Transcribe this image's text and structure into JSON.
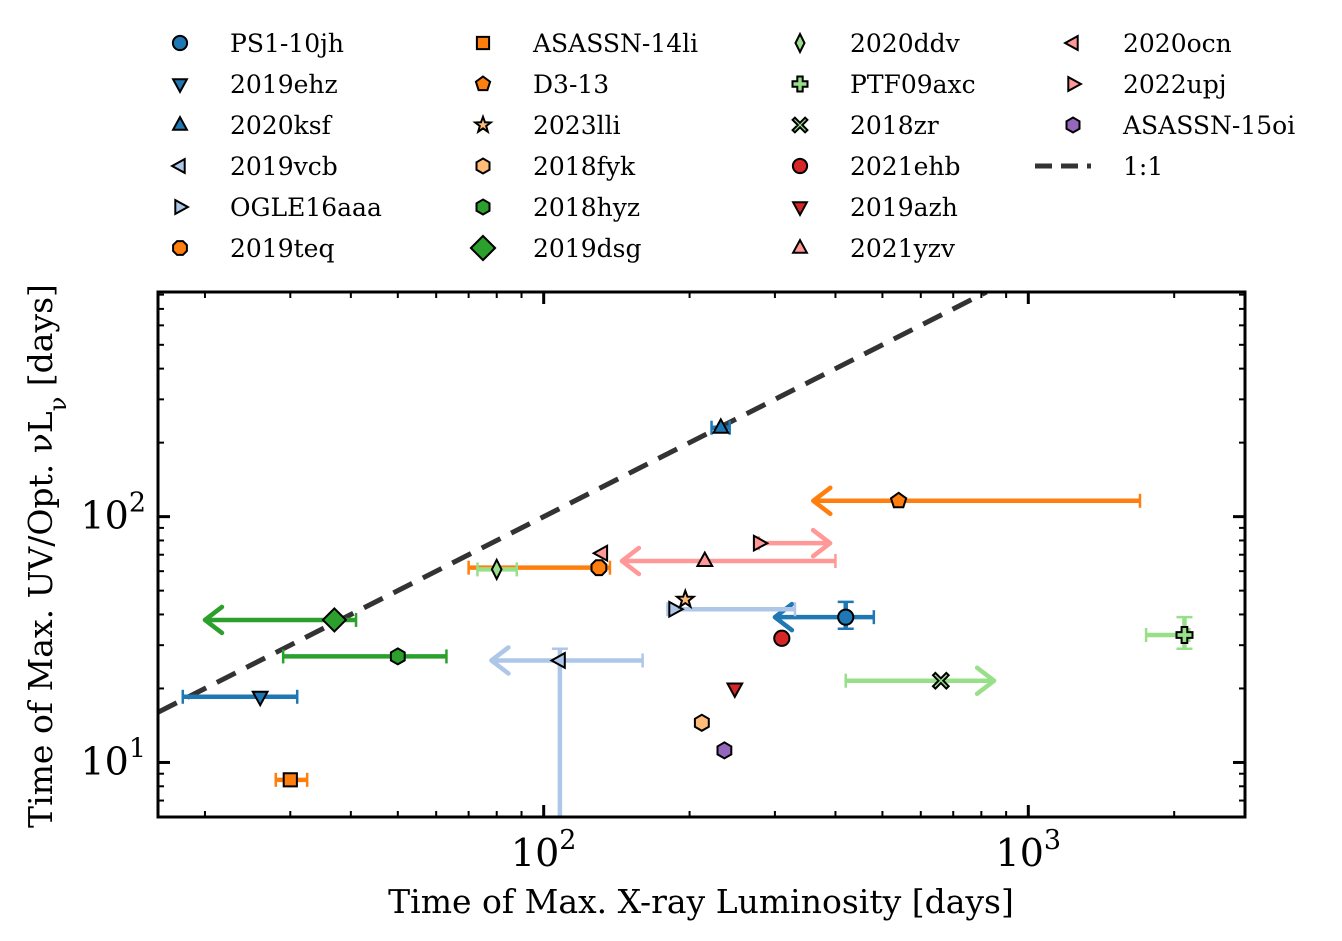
{
  "chart_data": {
    "type": "scatter",
    "xlabel": "Time of Max. X-ray Luminosity [days]",
    "ylabel": "Time of Max. UV/Opt. νL",
    "ylabel_sub": "ν",
    "ylabel_unit": " [days]",
    "xscale": "log",
    "yscale": "log",
    "xlim": [
      16,
      2800
    ],
    "ylim": [
      6,
      820
    ],
    "x_major_ticks": [
      {
        "base": "10",
        "exp": "2",
        "value": 100
      },
      {
        "base": "10",
        "exp": "3",
        "value": 1000
      }
    ],
    "y_major_ticks": [
      {
        "base": "10",
        "exp": "1",
        "value": 10
      },
      {
        "base": "10",
        "exp": "2",
        "value": 100
      }
    ],
    "grid": false,
    "legend_location": "above plot, 4 columns",
    "reference_line": {
      "label": "1:1",
      "color": "#333333",
      "style": "dashed"
    },
    "series": [
      {
        "name": "PS1-10jh",
        "marker": "circle",
        "color": "#1f77b4",
        "x": 420,
        "y": 39,
        "xerr": [
          300,
          480
        ],
        "yerr": [
          35,
          45
        ],
        "x_upper_limit": true
      },
      {
        "name": "2019ehz",
        "marker": "triangle_down",
        "color": "#1f77b4",
        "x": 26,
        "y": 18.5,
        "xerr": [
          18,
          31
        ]
      },
      {
        "name": "2020ksf",
        "marker": "triangle_up",
        "color": "#1f77b4",
        "x": 232,
        "y": 230,
        "xerr": [
          222,
          242
        ]
      },
      {
        "name": "2019vcb",
        "marker": "triangle_left",
        "color": "#aec7e8",
        "x": 108,
        "y": 26,
        "xerr": [
          78,
          160
        ],
        "yerr": [
          6,
          29
        ],
        "x_upper_limit": true
      },
      {
        "name": "OGLE16aaa",
        "marker": "triangle_right",
        "color": "#aec7e8",
        "x": 186,
        "y": 42,
        "xerr": [
          180,
          330
        ]
      },
      {
        "name": "2019teq",
        "marker": "octagon",
        "color": "#ff7f0e",
        "x": 130,
        "y": 62,
        "xerr": [
          70,
          137
        ]
      },
      {
        "name": "ASASSN-14li",
        "marker": "square",
        "color": "#ff7f0e",
        "x": 30,
        "y": 8.5,
        "xerr": [
          28,
          32.5
        ]
      },
      {
        "name": "D3-13",
        "marker": "pentagon",
        "color": "#ff7f0e",
        "x": 540,
        "y": 116,
        "xerr": [
          360,
          1700
        ],
        "x_upper_limit": true
      },
      {
        "name": "2023lli",
        "marker": "star",
        "color": "#ffbb78",
        "x": 196,
        "y": 46
      },
      {
        "name": "2018fyk",
        "marker": "hexagon",
        "color": "#ffbb78",
        "x": 212,
        "y": 14.5
      },
      {
        "name": "2018hyz",
        "marker": "hexagon",
        "color": "#2ca02c",
        "x": 50,
        "y": 27,
        "xerr": [
          29,
          63
        ]
      },
      {
        "name": "2019dsg",
        "marker": "diamond",
        "color": "#2ca02c",
        "x": 37,
        "y": 38,
        "xerr": [
          20,
          41
        ],
        "x_upper_limit": true
      },
      {
        "name": "2020ddv",
        "marker": "thin_diamond",
        "color": "#98df8a",
        "x": 80,
        "y": 61,
        "xerr": [
          73,
          88
        ]
      },
      {
        "name": "PTF09axc",
        "marker": "plus",
        "color": "#98df8a",
        "x": 2100,
        "y": 33,
        "xerr": [
          1750,
          2150
        ],
        "yerr": [
          29,
          39
        ]
      },
      {
        "name": "2018zr",
        "marker": "x",
        "color": "#98df8a",
        "x": 660,
        "y": 21.5,
        "xerr": [
          420,
          850
        ],
        "x_lower_limit": true
      },
      {
        "name": "2021ehb",
        "marker": "circle",
        "color": "#d62728",
        "x": 310,
        "y": 32
      },
      {
        "name": "2019azh",
        "marker": "triangle_down",
        "color": "#d62728",
        "x": 248,
        "y": 20
      },
      {
        "name": "2021yzv",
        "marker": "triangle_up",
        "color": "#ff9896",
        "x": 215,
        "y": 66,
        "xerr": [
          145,
          400
        ],
        "x_upper_limit": true
      },
      {
        "name": "2020ocn",
        "marker": "triangle_left",
        "color": "#ff9896",
        "x": 132,
        "y": 71
      },
      {
        "name": "2022upj",
        "marker": "triangle_right",
        "color": "#ff9896",
        "x": 278,
        "y": 78,
        "xerr": [
          278,
          390
        ],
        "x_lower_limit": true
      },
      {
        "name": "ASASSN-15oi",
        "marker": "hexagon",
        "color": "#9467bd",
        "x": 236,
        "y": 11.2
      }
    ]
  }
}
